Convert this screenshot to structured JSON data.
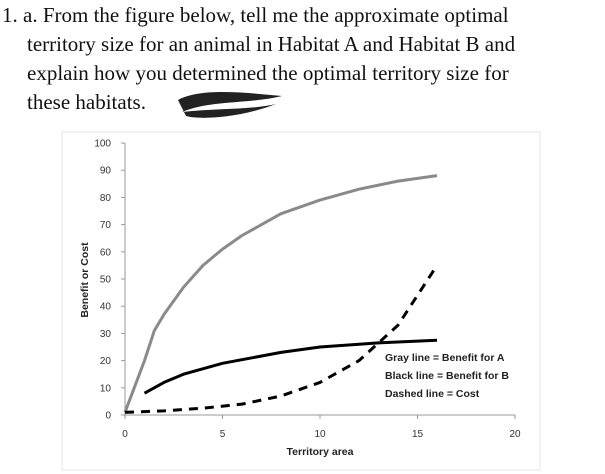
{
  "question_lines": [
    "1. a. From the figure below, tell me the approximate optimal",
    "territory size for an animal in Habitat A and Habitat B and",
    "explain how you determined the optimal territory size for",
    "these habitats."
  ],
  "chart_data": {
    "type": "line",
    "xlabel": "Territory area",
    "ylabel": "Benefit or Cost",
    "xlim": [
      0,
      20
    ],
    "xticks": [
      0,
      5,
      10,
      15,
      20
    ],
    "ylim": [
      0,
      100
    ],
    "yticks": [
      0,
      10,
      20,
      30,
      40,
      50,
      60,
      70,
      80,
      90,
      100
    ],
    "grid": false,
    "series": [
      {
        "color": "#8a8a8a",
        "dashed": false,
        "x": [
          0,
          1,
          1.5,
          2,
          3,
          4,
          5,
          6,
          8,
          10,
          12,
          14,
          16
        ],
        "values": [
          1,
          20,
          31,
          37,
          47,
          55,
          61,
          66,
          74,
          79,
          83,
          86,
          88
        ]
      },
      {
        "color": "#000000",
        "dashed": false,
        "x": [
          1,
          2,
          3,
          5,
          8,
          10,
          13,
          16
        ],
        "values": [
          8,
          12,
          15,
          19,
          23,
          25,
          26.5,
          27.5
        ]
      },
      {
        "color": "#000000",
        "dashed": true,
        "x": [
          0,
          2,
          4,
          6,
          8,
          10,
          12,
          14,
          16
        ],
        "values": [
          1,
          1.5,
          2.5,
          4,
          7,
          12,
          20,
          33,
          55
        ]
      }
    ],
    "annotations": [
      "Gray line = Benefit for A",
      "Black line = Benefit for B",
      "Dashed line = Cost"
    ]
  }
}
